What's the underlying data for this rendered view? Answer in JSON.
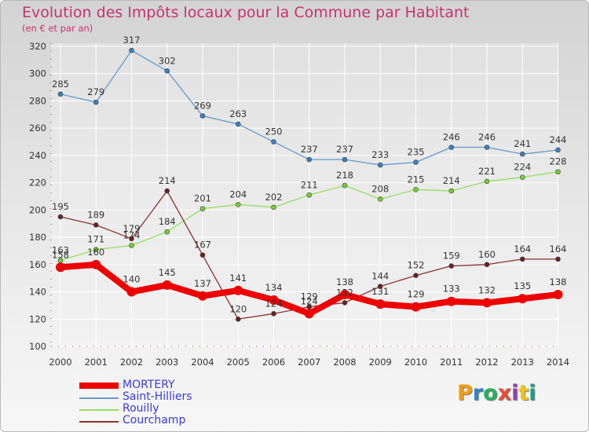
{
  "header": {
    "title": "Evolution des Impôts locaux pour la Commune par Habitant",
    "subtitle": "(en € et par an)"
  },
  "logo": {
    "text": "Proxiti",
    "colors": [
      "#f39c12",
      "#2e86c1",
      "#27ae60",
      "#e74c3c",
      "#8e44ad",
      "#f1c40f",
      "#16a085"
    ]
  },
  "chart_data": {
    "type": "line",
    "title": "Evolution des Impôts locaux pour la Commune par Habitant",
    "subtitle": "(en € et par an)",
    "x": [
      "2000",
      "2001",
      "2002",
      "2003",
      "2004",
      "2005",
      "2006",
      "2007",
      "2008",
      "2009",
      "2010",
      "2011",
      "2012",
      "2013",
      "2014"
    ],
    "ylim": [
      100,
      320
    ],
    "yticks": [
      100,
      120,
      140,
      160,
      180,
      200,
      220,
      240,
      260,
      280,
      300,
      320
    ],
    "grid": true,
    "legend_position": "bottom-left",
    "series": [
      {
        "name": "MORTERY",
        "color": "#ee0000",
        "line_color": "#ee0000",
        "marker_color": "#ee0000",
        "width": 8,
        "values": [
          158,
          160,
          140,
          145,
          137,
          141,
          134,
          124,
          138,
          131,
          129,
          133,
          132,
          135,
          138
        ]
      },
      {
        "name": "Saint-Hilliers",
        "color": "#6699cc",
        "line_color": "#6699cc",
        "marker_color": "#3a7fc2",
        "width": 1.3,
        "values": [
          285,
          279,
          317,
          302,
          269,
          263,
          250,
          237,
          237,
          233,
          235,
          246,
          246,
          241,
          244
        ]
      },
      {
        "name": "Rouilly",
        "color": "#99dd66",
        "line_color": "#99dd66",
        "marker_color": "#77cc33",
        "width": 1.3,
        "values": [
          163,
          171,
          174,
          184,
          201,
          204,
          202,
          211,
          218,
          208,
          215,
          214,
          221,
          224,
          228
        ]
      },
      {
        "name": "Courchamp",
        "color": "#883333",
        "line_color": "#883333",
        "marker_color": "#662222",
        "width": 1.3,
        "values": [
          195,
          189,
          179,
          214,
          167,
          120,
          124,
          129,
          132,
          144,
          152,
          159,
          160,
          164,
          164
        ]
      }
    ],
    "data_labels": {
      "MORTERY": [
        "158",
        "160",
        "140",
        "145",
        "137",
        "141",
        "134",
        "124",
        "138",
        "131",
        "129",
        "133",
        "132",
        "135",
        "138"
      ],
      "Saint-Hilliers": [
        "285",
        "279",
        "317",
        "302",
        "269",
        "263",
        "250",
        "237",
        "237",
        "233",
        "235",
        "246",
        "246",
        "241",
        "244"
      ],
      "Rouilly": [
        "163",
        "171",
        "174",
        "184",
        "201",
        "204",
        "202",
        "211",
        "218",
        "208",
        "215",
        "214",
        "221",
        "224",
        "228"
      ],
      "Courchamp": [
        "195",
        "189",
        "179",
        "214",
        "167",
        "120",
        "124",
        "129",
        "132",
        "144",
        "152",
        "159",
        "160",
        "164",
        "164"
      ]
    }
  }
}
